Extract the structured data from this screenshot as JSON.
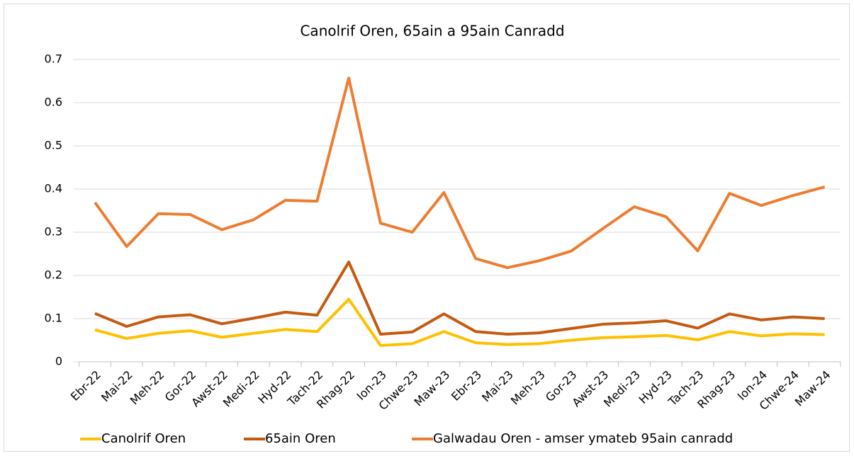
{
  "chart_data": {
    "type": "line",
    "title": "Canolrif Oren, 65ain a 95ain Canradd",
    "categories": [
      "Ebr-22",
      "Mai-22",
      "Meh-22",
      "Gor-22",
      "Awst-22",
      "Medi-22",
      "Hyd-22",
      "Tach-22",
      "Rhag-22",
      "Ion-23",
      "Chwe-23",
      "Maw-23",
      "Ebr-23",
      "Mai-23",
      "Meh-23",
      "Gor-23",
      "Awst-23",
      "Medi-23",
      "Hyd-23",
      "Tach-23",
      "Rhag-23",
      "Ion-24",
      "Chwe-24",
      "Maw-24"
    ],
    "series": [
      {
        "name": "Canolrif Oren",
        "color": "#FFC000",
        "values": [
          0.074,
          0.054,
          0.066,
          0.072,
          0.057,
          0.066,
          0.075,
          0.07,
          0.145,
          0.038,
          0.042,
          0.07,
          0.044,
          0.04,
          0.042,
          0.05,
          0.056,
          0.058,
          0.061,
          0.051,
          0.07,
          0.06,
          0.065,
          0.063
        ]
      },
      {
        "name": "65ain Oren",
        "color": "#C55A11",
        "values": [
          0.112,
          0.082,
          0.104,
          0.109,
          0.088,
          0.101,
          0.115,
          0.108,
          0.231,
          0.064,
          0.069,
          0.111,
          0.07,
          0.064,
          0.067,
          0.077,
          0.087,
          0.09,
          0.095,
          0.078,
          0.111,
          0.097,
          0.104,
          0.1
        ]
      },
      {
        "name": "Galwadau Oren - amser ymateb 95ain canradd",
        "color": "#ED7D31",
        "values": [
          0.369,
          0.267,
          0.343,
          0.341,
          0.306,
          0.329,
          0.374,
          0.372,
          0.657,
          0.321,
          0.3,
          0.392,
          0.239,
          0.218,
          0.234,
          0.256,
          0.308,
          0.359,
          0.336,
          0.257,
          0.39,
          0.362,
          0.385,
          0.405
        ]
      }
    ],
    "ylim": [
      0,
      0.7
    ],
    "yticks": [
      0,
      0.1,
      0.2,
      0.3,
      0.4,
      0.5,
      0.6,
      0.7
    ],
    "grid": true,
    "legend": "bottom"
  }
}
